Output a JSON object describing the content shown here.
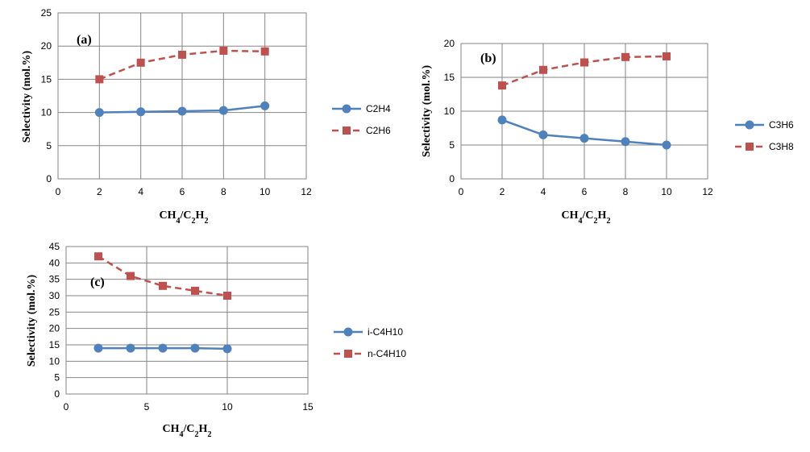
{
  "chart_data": [
    {
      "type": "line",
      "panel_label": "(a)",
      "xlabel": "CH4/C2H2",
      "ylabel": "Selectivity (mol.%)",
      "xlim": [
        0,
        12
      ],
      "x_ticks": [
        0,
        2,
        4,
        6,
        8,
        10,
        12
      ],
      "ylim": [
        0,
        25
      ],
      "y_ticks": [
        0,
        5,
        10,
        15,
        20,
        25
      ],
      "grid": true,
      "legend_position": "right",
      "x": [
        2,
        4,
        6,
        8,
        10
      ],
      "series": [
        {
          "name": "C2H4",
          "values": [
            10,
            10.1,
            10.2,
            10.3,
            11
          ],
          "color": "#4f81bd",
          "marker": "circle",
          "dash": "solid"
        },
        {
          "name": "C2H6",
          "values": [
            15,
            17.5,
            18.7,
            19.3,
            19.2
          ],
          "color": "#c0504d",
          "marker": "square",
          "dash": "dashed"
        }
      ]
    },
    {
      "type": "line",
      "panel_label": "(b)",
      "xlabel": "CH4/C2H2",
      "ylabel": "Selectivity (mol.%)",
      "xlim": [
        0,
        12
      ],
      "x_ticks": [
        0,
        2,
        4,
        6,
        8,
        10,
        12
      ],
      "ylim": [
        0,
        20
      ],
      "y_ticks": [
        0,
        5,
        10,
        15,
        20
      ],
      "grid": true,
      "legend_position": "right",
      "x": [
        2,
        4,
        6,
        8,
        10
      ],
      "series": [
        {
          "name": "C3H6",
          "values": [
            8.7,
            6.5,
            6.0,
            5.5,
            5.0
          ],
          "color": "#4f81bd",
          "marker": "circle",
          "dash": "solid"
        },
        {
          "name": "C3H8",
          "values": [
            13.8,
            16.1,
            17.2,
            18.0,
            18.1
          ],
          "color": "#c0504d",
          "marker": "square",
          "dash": "dashed"
        }
      ]
    },
    {
      "type": "line",
      "panel_label": "(c)",
      "xlabel": "CH4/C2H2",
      "ylabel": "Selectivity (mol.%)",
      "xlim": [
        0,
        15
      ],
      "x_ticks": [
        0,
        5,
        10,
        15
      ],
      "ylim": [
        0,
        45
      ],
      "y_ticks": [
        0,
        5,
        10,
        15,
        20,
        25,
        30,
        35,
        40,
        45
      ],
      "grid": true,
      "legend_position": "right",
      "x": [
        2,
        4,
        6,
        8,
        10
      ],
      "series": [
        {
          "name": "i-C4H10",
          "values": [
            14,
            14,
            14,
            14,
            13.8
          ],
          "color": "#4f81bd",
          "marker": "circle",
          "dash": "solid"
        },
        {
          "name": "n-C4H10",
          "values": [
            42,
            36,
            33,
            31.5,
            30
          ],
          "color": "#c0504d",
          "marker": "square",
          "dash": "dashed"
        }
      ]
    }
  ]
}
